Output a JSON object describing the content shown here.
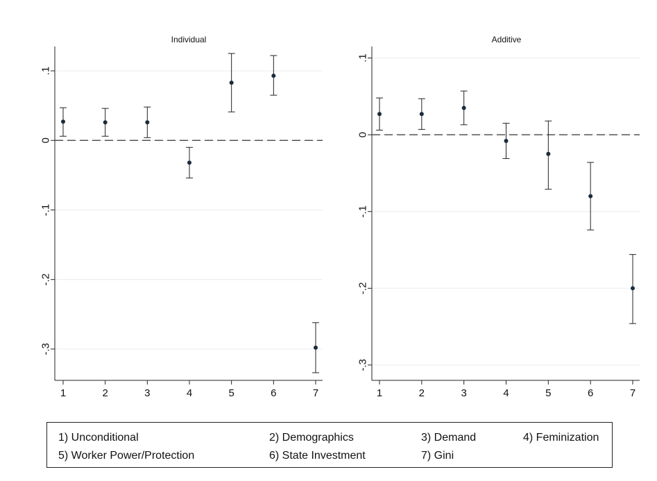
{
  "colors": {
    "point": "#1a2b3c",
    "bar": "#222222",
    "axis": "#222222",
    "grid": "#e8ecef",
    "zero_line": "#333333"
  },
  "chart_data": [
    {
      "type": "scatter",
      "subtype": "coefficient plot with confidence intervals",
      "title": "Individual",
      "xlabel": "",
      "ylabel": "",
      "x": [
        1,
        2,
        3,
        4,
        5,
        6,
        7
      ],
      "x_ticks": [
        "1",
        "2",
        "3",
        "4",
        "5",
        "6",
        "7"
      ],
      "y_ticks": [
        ".1",
        "0",
        "-.1",
        "-.2",
        "-.3"
      ],
      "y_tick_values": [
        0.1,
        0,
        -0.1,
        -0.2,
        -0.3
      ],
      "ylim": [
        -0.345,
        0.135
      ],
      "reference_line": {
        "y": 0,
        "style": "dashed"
      },
      "grid": true,
      "series": [
        {
          "estimate": [
            0.027,
            0.026,
            0.026,
            -0.032,
            0.083,
            0.093,
            -0.298
          ],
          "ci_low": [
            0.006,
            0.006,
            0.004,
            -0.054,
            0.041,
            0.065,
            -0.334
          ],
          "ci_high": [
            0.047,
            0.046,
            0.048,
            -0.01,
            0.125,
            0.122,
            -0.262
          ]
        }
      ]
    },
    {
      "type": "scatter",
      "subtype": "coefficient plot with confidence intervals",
      "title": "Additive",
      "xlabel": "",
      "ylabel": "",
      "x": [
        1,
        2,
        3,
        4,
        5,
        6,
        7
      ],
      "x_ticks": [
        "1",
        "2",
        "3",
        "4",
        "5",
        "6",
        "7"
      ],
      "y_ticks": [
        ".1",
        "0",
        "-.1",
        "-.2",
        "-.3"
      ],
      "y_tick_values": [
        0.1,
        0,
        -0.1,
        -0.2,
        -0.3
      ],
      "ylim": [
        -0.32,
        0.115
      ],
      "reference_line": {
        "y": 0,
        "style": "dashed"
      },
      "grid": true,
      "series": [
        {
          "estimate": [
            0.027,
            0.027,
            0.035,
            -0.008,
            -0.025,
            -0.08,
            -0.2
          ],
          "ci_low": [
            0.006,
            0.007,
            0.013,
            -0.031,
            -0.071,
            -0.124,
            -0.246
          ],
          "ci_high": [
            0.048,
            0.047,
            0.057,
            0.015,
            0.018,
            -0.036,
            -0.156
          ]
        }
      ]
    }
  ],
  "legend": {
    "items": [
      "1) Unconditional",
      "2) Demographics",
      "3) Demand",
      "4) Feminization",
      "5) Worker Power/Protection",
      "6) State Investment",
      "7) Gini"
    ]
  }
}
